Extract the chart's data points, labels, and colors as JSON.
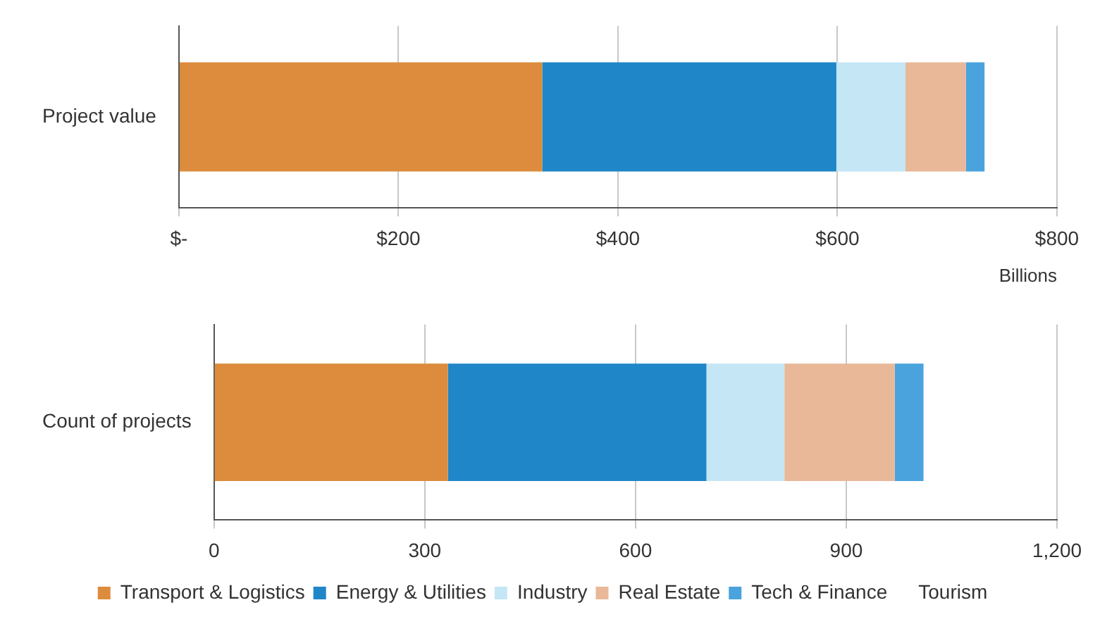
{
  "chart_data": [
    {
      "type": "bar",
      "orientation": "horizontal",
      "stacked": true,
      "categories": [
        "Project value"
      ],
      "xlabel": "Billions",
      "xlim": [
        0,
        800
      ],
      "xticks": [
        {
          "value": 0,
          "label": "$-"
        },
        {
          "value": 200,
          "label": "$200"
        },
        {
          "value": 400,
          "label": "$400"
        },
        {
          "value": 600,
          "label": "$600"
        },
        {
          "value": 800,
          "label": "$800"
        }
      ],
      "grid": "x",
      "legend": false,
      "series": [
        {
          "color": "#dc8c3c",
          "values": [
            331
          ]
        },
        {
          "color": "#1f86c8",
          "values": [
            268
          ]
        },
        {
          "color": "#c5e6f5",
          "values": [
            63
          ]
        },
        {
          "color": "#e8b898",
          "values": [
            55
          ]
        },
        {
          "color": "#4aa3dc",
          "values": [
            17
          ]
        },
        {
          "values": [
            0
          ]
        }
      ]
    },
    {
      "type": "bar",
      "orientation": "horizontal",
      "stacked": true,
      "categories": [
        "Count of projects"
      ],
      "xlim": [
        0,
        1200
      ],
      "xticks": [
        0,
        300,
        600,
        900,
        {
          "value": 1200,
          "label": "1,200"
        }
      ],
      "grid": "x",
      "legend": "bottom",
      "series": [
        {
          "name": "Transport & Logistics",
          "color": "#dc8c3c",
          "values": [
            333
          ]
        },
        {
          "name": "Energy & Utilities",
          "color": "#1f86c8",
          "values": [
            368
          ]
        },
        {
          "name": "Industry",
          "color": "#c5e6f5",
          "values": [
            111
          ]
        },
        {
          "name": "Real Estate",
          "color": "#e8b898",
          "values": [
            157
          ]
        },
        {
          "name": "Tech & Finance",
          "color": "#4aa3dc",
          "values": [
            41
          ]
        },
        {
          "name": "Tourism",
          "values": [
            0
          ]
        }
      ]
    }
  ]
}
